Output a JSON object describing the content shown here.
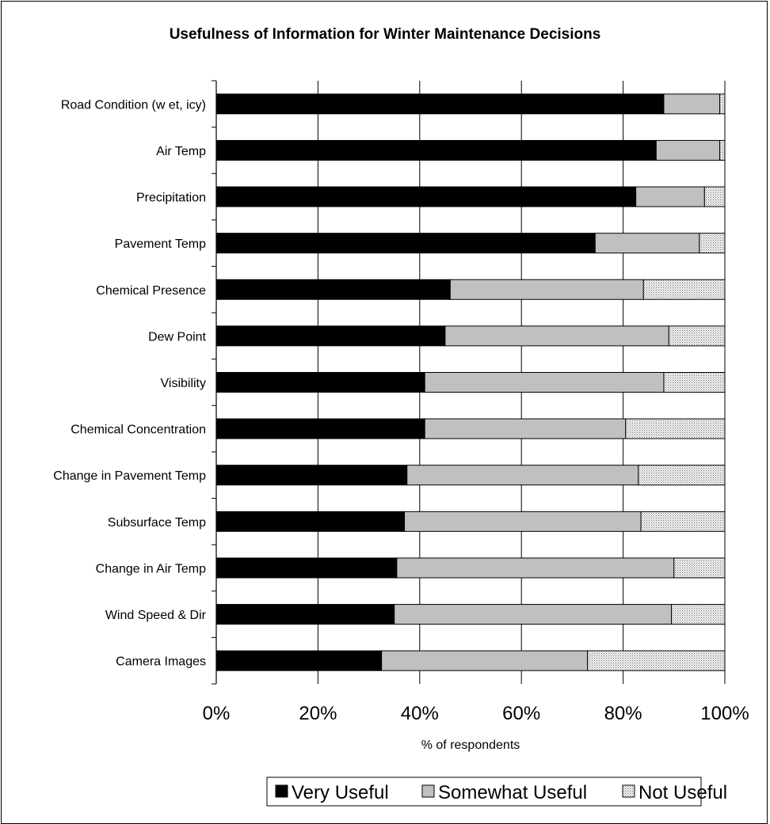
{
  "chart_data": {
    "type": "bar",
    "orientation": "horizontal",
    "stacked": true,
    "title": "Usefulness of Information for Winter Maintenance Decisions",
    "xlabel": "% of respondents",
    "ylabel": "",
    "xlim": [
      0,
      100
    ],
    "x_ticks": [
      "0%",
      "20%",
      "40%",
      "60%",
      "80%",
      "100%"
    ],
    "grid": true,
    "legend_position": "bottom",
    "categories": [
      "Road Condition (w et, icy)",
      "Air Temp",
      "Precipitation",
      "Pavement Temp",
      "Chemical Presence",
      "Dew Point",
      "Visibility",
      "Chemical Concentration",
      "Change in Pavement Temp",
      "Subsurface Temp",
      "Change in Air Temp",
      "Wind Speed & Dir",
      "Camera Images"
    ],
    "series": [
      {
        "name": "Very Useful",
        "color": "#000000",
        "values": [
          88,
          86.5,
          82.5,
          74.5,
          46,
          45,
          41,
          41,
          37.5,
          37,
          35.5,
          35,
          32.5
        ]
      },
      {
        "name": "Somewhat Useful",
        "color": "#c0c0c0",
        "values": [
          11,
          12.5,
          13.5,
          20.5,
          38,
          44,
          47,
          39.5,
          45.5,
          46.5,
          54.5,
          54.5,
          40.5
        ]
      },
      {
        "name": "Not Useful",
        "color": "#ececec",
        "pattern": "dotted",
        "values": [
          1,
          1,
          4,
          5,
          16,
          11,
          12,
          19.5,
          17,
          16.5,
          10,
          10.5,
          27
        ]
      }
    ]
  }
}
